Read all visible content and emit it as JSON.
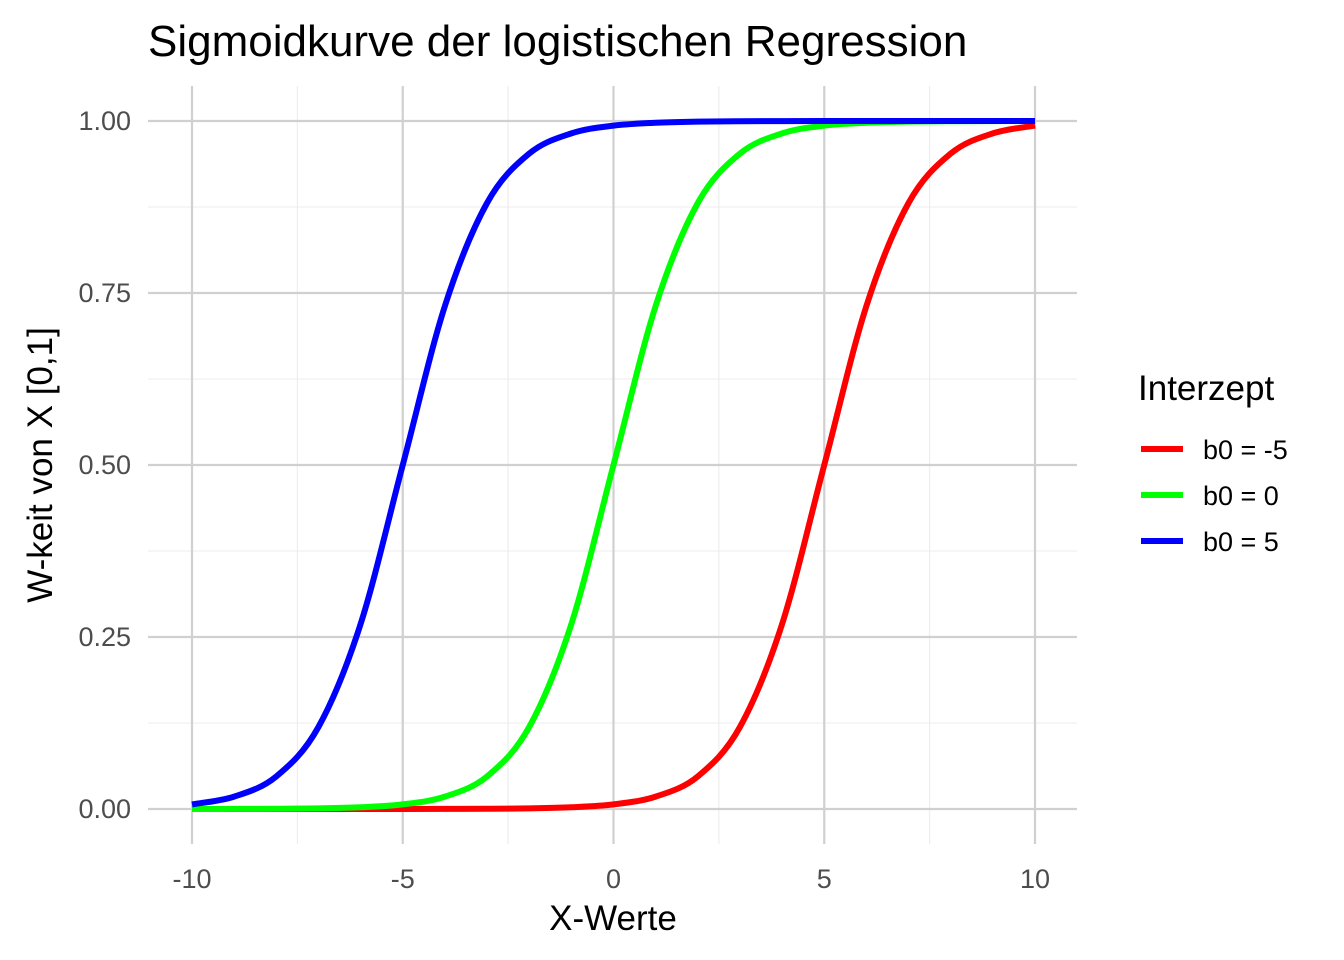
{
  "chart_data": {
    "type": "line",
    "title": "Sigmoidkurve der logistischen Regression",
    "xlabel": "X-Werte",
    "ylabel": "W-keit von X [0,1]",
    "xlim": [
      -10,
      10
    ],
    "ylim": [
      0,
      1
    ],
    "x_ticks": [
      -10,
      -5,
      0,
      5,
      10
    ],
    "x_tick_labels": [
      "-10",
      "-5",
      "0",
      "5",
      "10"
    ],
    "y_ticks": [
      0,
      0.25,
      0.5,
      0.75,
      1
    ],
    "y_tick_labels": [
      "0.00",
      "0.25",
      "0.50",
      "0.75",
      "1.00"
    ],
    "grid": true,
    "legend": {
      "title": "Interzept",
      "placement": "right"
    },
    "x": [
      -10,
      -9,
      -8,
      -7,
      -6,
      -5,
      -4,
      -3,
      -2,
      -1,
      0,
      1,
      2,
      3,
      4,
      5,
      6,
      7,
      8,
      9,
      10
    ],
    "series": [
      {
        "name": "b0 = -5",
        "color": "#ff0000",
        "values": [
          0.0,
          0.0,
          0.0,
          0.0,
          0.0,
          0.0,
          0.0001,
          0.0003,
          0.0009,
          0.0025,
          0.0067,
          0.018,
          0.0474,
          0.1192,
          0.2689,
          0.5,
          0.7311,
          0.8808,
          0.9526,
          0.982,
          0.9933
        ]
      },
      {
        "name": "b0 = 0",
        "color": "#00ff00",
        "values": [
          0.0,
          0.0001,
          0.0003,
          0.0009,
          0.0025,
          0.0067,
          0.018,
          0.0474,
          0.1192,
          0.2689,
          0.5,
          0.7311,
          0.8808,
          0.9526,
          0.982,
          0.9933,
          0.9975,
          0.9991,
          0.9997,
          0.9999,
          1.0
        ]
      },
      {
        "name": "b0 = 5",
        "color": "#0000ff",
        "values": [
          0.0067,
          0.018,
          0.0474,
          0.1192,
          0.2689,
          0.5,
          0.7311,
          0.8808,
          0.9526,
          0.982,
          0.9933,
          0.9975,
          0.9991,
          0.9997,
          0.9999,
          1.0,
          1.0,
          1.0,
          1.0,
          1.0,
          1.0
        ]
      }
    ]
  }
}
